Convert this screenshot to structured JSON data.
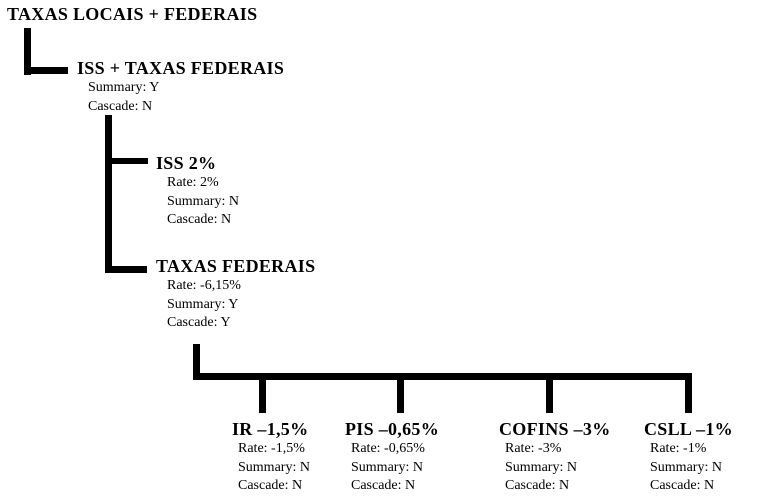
{
  "colors": {
    "background": "#ffffff",
    "line": "#000000",
    "text": "#000000"
  },
  "tree": {
    "root": {
      "title": "TAXAS LOCAIS + FEDERAIS"
    },
    "iss_federais": {
      "title": "ISS + TAXAS FEDERAIS",
      "summary": "Summary: Y",
      "cascade": "Cascade: N"
    },
    "iss2": {
      "title": "ISS 2%",
      "rate": "Rate: 2%",
      "summary": "Summary: N",
      "cascade": "Cascade: N"
    },
    "taxas_federais": {
      "title": "TAXAS FEDERAIS",
      "rate": "Rate: -6,15%",
      "summary": "Summary: Y",
      "cascade": "Cascade: Y"
    },
    "ir": {
      "title": "IR –1,5%",
      "rate": "Rate: -1,5%",
      "summary": "Summary: N",
      "cascade": "Cascade: N"
    },
    "pis": {
      "title": "PIS –0,65%",
      "rate": "Rate: -0,65%",
      "summary": "Summary: N",
      "cascade": "Cascade: N"
    },
    "cofins": {
      "title": "COFINS –3%",
      "rate": "Rate: -3%",
      "summary": "Summary: N",
      "cascade": "Cascade: N"
    },
    "csll": {
      "title": "CSLL –1%",
      "rate": "Rate: -1%",
      "summary": "Summary: N",
      "cascade": "Cascade: N"
    }
  }
}
